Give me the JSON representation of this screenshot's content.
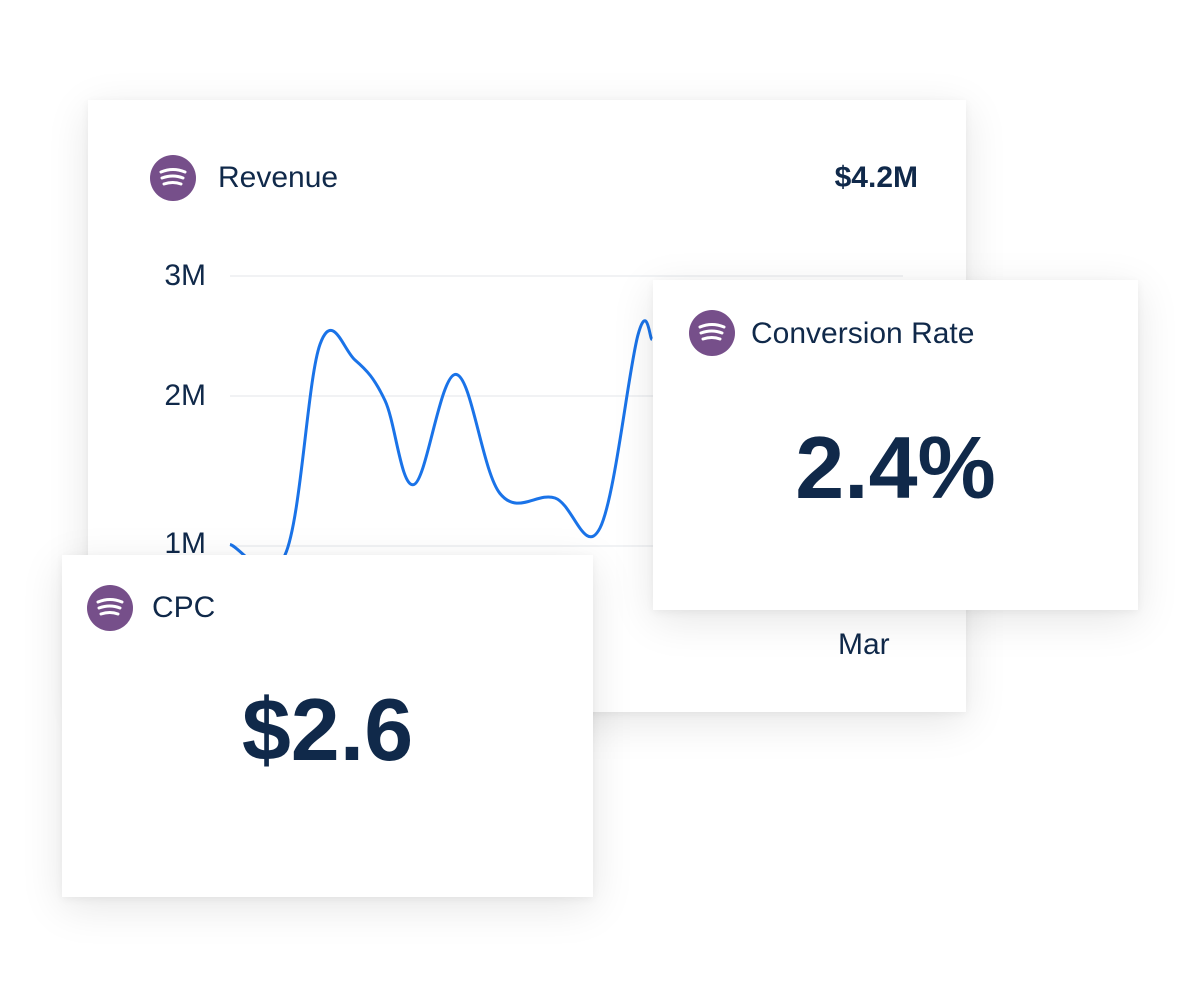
{
  "colors": {
    "brand": "#764f8a",
    "text": "#10294a",
    "line": "#1a73e8",
    "grid": "#e3e6ea"
  },
  "revenue": {
    "title": "Revenue",
    "total": "$4.2M",
    "icon": "spotify-icon"
  },
  "conversion": {
    "title": "Conversion Rate",
    "value": "2.4%",
    "icon": "spotify-icon"
  },
  "cpc": {
    "title": "CPC",
    "value": "$2.6",
    "icon": "spotify-icon"
  },
  "chart_data": {
    "type": "line",
    "y_ticks": [
      "3M",
      "2M",
      "1M"
    ],
    "y_tick_values": [
      3,
      2,
      1
    ],
    "x_ticks": [
      "Mar"
    ],
    "grid": true,
    "series": [
      {
        "values": [
          1.01,
          0.94,
          2.43,
          2.3,
          1.97,
          1.41,
          2.18,
          1.35,
          1.32,
          1.12,
          2.51,
          2.47
        ]
      }
    ]
  }
}
